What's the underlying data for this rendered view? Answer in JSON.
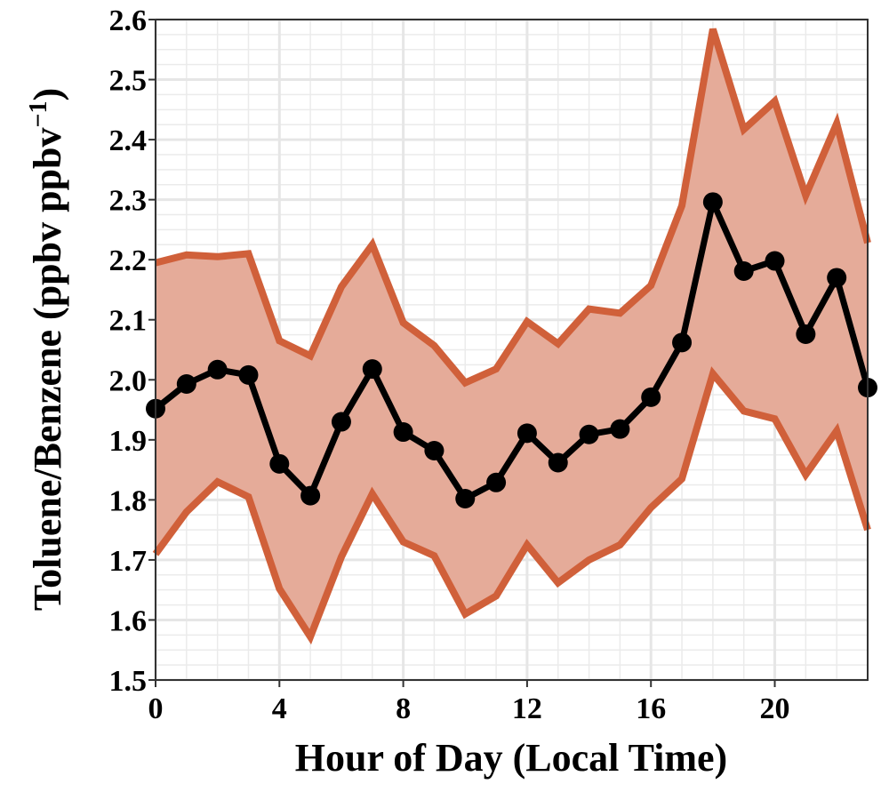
{
  "chart_data": {
    "type": "line",
    "xlabel": "Hour of Day (Local Time)",
    "ylabel_main": "Toluene/Benzene (ppbv ppbv",
    "ylabel_sup": "−1",
    "ylabel_close": ")",
    "xlim": [
      0,
      23
    ],
    "ylim": [
      1.5,
      2.6
    ],
    "x_ticks": [
      0,
      4,
      8,
      12,
      16,
      20
    ],
    "x_tick_labels": [
      "0",
      "4",
      "8",
      "12",
      "16",
      "20"
    ],
    "y_ticks": [
      1.5,
      1.6,
      1.7,
      1.8,
      1.9,
      2.0,
      2.1,
      2.2,
      2.3,
      2.4,
      2.5,
      2.6
    ],
    "y_tick_labels": [
      "1.5",
      "1.6",
      "1.7",
      "1.8",
      "1.9",
      "2.0",
      "2.1",
      "2.2",
      "2.3",
      "2.4",
      "2.5",
      "2.6"
    ],
    "grid": true,
    "x": [
      0,
      1,
      2,
      3,
      4,
      5,
      6,
      7,
      8,
      9,
      10,
      11,
      12,
      13,
      14,
      15,
      16,
      17,
      18,
      19,
      20,
      21,
      22,
      23
    ],
    "series": [
      {
        "values": [
          1.952,
          1.993,
          2.017,
          2.008,
          1.86,
          1.807,
          1.93,
          2.018,
          1.913,
          1.882,
          1.802,
          1.829,
          1.911,
          1.862,
          1.909,
          1.918,
          1.971,
          2.062,
          2.296,
          2.181,
          2.198,
          2.076,
          2.17,
          1.987
        ],
        "color": "#000000"
      }
    ],
    "band": {
      "upper": [
        2.195,
        2.208,
        2.205,
        2.21,
        2.065,
        2.04,
        2.155,
        2.225,
        2.095,
        2.057,
        1.995,
        2.018,
        2.097,
        2.06,
        2.118,
        2.111,
        2.157,
        2.29,
        2.584,
        2.417,
        2.464,
        2.307,
        2.427,
        2.228
      ],
      "lower": [
        1.71,
        1.78,
        1.83,
        1.805,
        1.652,
        1.572,
        1.705,
        1.81,
        1.73,
        1.707,
        1.61,
        1.64,
        1.725,
        1.662,
        1.7,
        1.725,
        1.787,
        1.835,
        2.01,
        1.948,
        1.935,
        1.842,
        1.915,
        1.75
      ],
      "line_color": "#d0603a",
      "fill_color": "#e5ab99"
    }
  }
}
